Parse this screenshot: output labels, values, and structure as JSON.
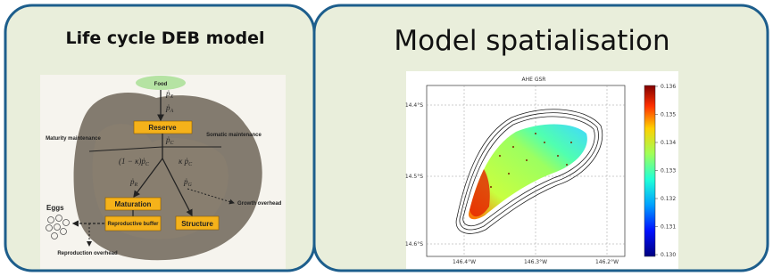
{
  "panels": [
    {
      "title": "Life cycle DEB model",
      "diagram": {
        "nodes": [
          "Food",
          "Reserve",
          "Maturation",
          "Reproductive buffer",
          "Structure",
          "Eggs"
        ],
        "labels": [
          "Maturity maintenance",
          "Somatic maintenance",
          "Growth overhead",
          "Reproduction overhead"
        ],
        "fluxes": [
          {
            "symbol": "ṗ",
            "sub": "X"
          },
          {
            "symbol": "ṗ",
            "sub": "A"
          },
          {
            "symbol": "ṗ",
            "sub": "C"
          },
          {
            "symbol": "(1 − κ)ṗ",
            "sub": "C"
          },
          {
            "symbol": "κ ṗ",
            "sub": "C"
          },
          {
            "symbol": "ṗ",
            "sub": "R"
          },
          {
            "symbol": "ṗ",
            "sub": "G"
          }
        ]
      }
    },
    {
      "title": "Model spatialisation",
      "map": {
        "title": "AHE GSR",
        "yticks": [
          "14.4°S",
          "14.5°S",
          "14.6°S"
        ],
        "xticks": [
          "146.4°W",
          "146.3°W",
          "146.2°W"
        ],
        "colorbar_ticks": [
          "0.136",
          "0.135",
          "0.134",
          "0.133",
          "0.132",
          "0.131",
          "0.130"
        ]
      }
    }
  ]
}
